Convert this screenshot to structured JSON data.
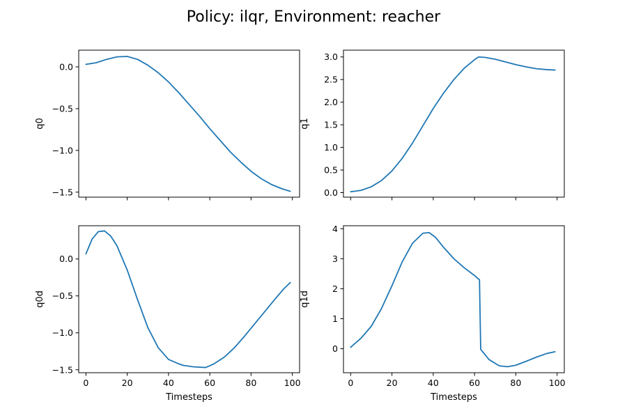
{
  "figure": {
    "title": "Policy: ilqr, Environment: reacher",
    "line_color": "#1f77b4"
  },
  "chart_data": [
    {
      "type": "line",
      "ylabel": "q0",
      "xlabel": "",
      "xlim": [
        -3.5,
        103.5
      ],
      "ylim": [
        -1.56,
        0.2
      ],
      "xticks": [
        0,
        20,
        40,
        60,
        80,
        100
      ],
      "xtick_labels_shown": false,
      "yticks": [
        0.0,
        -0.5,
        -1.0,
        -1.5
      ],
      "ytick_labels": [
        "0.0",
        "−0.5",
        "−1.0",
        "−1.5"
      ],
      "x": [
        0,
        5,
        10,
        15,
        20,
        25,
        30,
        35,
        40,
        45,
        50,
        55,
        60,
        65,
        70,
        75,
        80,
        85,
        90,
        95,
        99
      ],
      "values": [
        0.03,
        0.05,
        0.09,
        0.12,
        0.125,
        0.09,
        0.02,
        -0.07,
        -0.18,
        -0.31,
        -0.45,
        -0.59,
        -0.74,
        -0.88,
        -1.02,
        -1.14,
        -1.25,
        -1.34,
        -1.41,
        -1.46,
        -1.49
      ]
    },
    {
      "type": "line",
      "ylabel": "q1",
      "xlabel": "",
      "xlim": [
        -3.5,
        103.5
      ],
      "ylim": [
        -0.1,
        3.15
      ],
      "xticks": [
        0,
        20,
        40,
        60,
        80,
        100
      ],
      "xtick_labels_shown": false,
      "yticks": [
        0.0,
        0.5,
        1.0,
        1.5,
        2.0,
        2.5,
        3.0
      ],
      "ytick_labels": [
        "0.0",
        "0.5",
        "1.0",
        "1.5",
        "2.0",
        "2.5",
        "3.0"
      ],
      "x": [
        0,
        5,
        10,
        15,
        20,
        25,
        30,
        35,
        40,
        45,
        50,
        55,
        60,
        62,
        65,
        70,
        75,
        80,
        85,
        90,
        95,
        99
      ],
      "values": [
        0.02,
        0.05,
        0.13,
        0.27,
        0.48,
        0.76,
        1.1,
        1.48,
        1.86,
        2.2,
        2.5,
        2.75,
        2.94,
        3.0,
        2.99,
        2.95,
        2.89,
        2.83,
        2.78,
        2.74,
        2.72,
        2.71
      ]
    },
    {
      "type": "line",
      "ylabel": "q0d",
      "xlabel": "Timesteps",
      "xlim": [
        -3.5,
        103.5
      ],
      "ylim": [
        -1.54,
        0.45
      ],
      "xticks": [
        0,
        20,
        40,
        60,
        80,
        100
      ],
      "xtick_labels": [
        "0",
        "20",
        "40",
        "60",
        "80",
        "100"
      ],
      "xtick_labels_shown": true,
      "yticks": [
        0.0,
        -0.5,
        -1.0,
        -1.5
      ],
      "ytick_labels": [
        "0.0",
        "−0.5",
        "−1.0",
        "−1.5"
      ],
      "x": [
        0,
        3,
        6,
        9,
        12,
        15,
        20,
        25,
        30,
        35,
        40,
        45,
        47,
        52,
        58,
        62,
        67,
        72,
        77,
        82,
        87,
        92,
        96,
        99
      ],
      "values": [
        0.07,
        0.27,
        0.37,
        0.38,
        0.31,
        0.18,
        -0.15,
        -0.55,
        -0.93,
        -1.2,
        -1.36,
        -1.42,
        -1.44,
        -1.46,
        -1.47,
        -1.42,
        -1.33,
        -1.2,
        -1.04,
        -0.87,
        -0.7,
        -0.53,
        -0.4,
        -0.32
      ]
    },
    {
      "type": "line",
      "ylabel": "q1d",
      "xlabel": "Timesteps",
      "xlim": [
        -3.5,
        103.5
      ],
      "ylim": [
        -0.8,
        4.1
      ],
      "xticks": [
        0,
        20,
        40,
        60,
        80,
        100
      ],
      "xtick_labels": [
        "0",
        "20",
        "40",
        "60",
        "80",
        "100"
      ],
      "xtick_labels_shown": true,
      "yticks": [
        0,
        1,
        2,
        3,
        4
      ],
      "ytick_labels": [
        "0",
        "1",
        "2",
        "3",
        "4"
      ],
      "x": [
        0,
        5,
        10,
        15,
        20,
        25,
        30,
        35,
        38,
        41,
        45,
        50,
        55,
        60,
        62,
        62.4,
        63,
        67,
        72,
        76,
        80,
        85,
        90,
        95,
        99
      ],
      "values": [
        0.05,
        0.35,
        0.75,
        1.35,
        2.1,
        2.9,
        3.52,
        3.85,
        3.87,
        3.72,
        3.38,
        3.0,
        2.7,
        2.44,
        2.32,
        2.3,
        -0.02,
        -0.36,
        -0.57,
        -0.6,
        -0.55,
        -0.42,
        -0.28,
        -0.16,
        -0.1
      ]
    }
  ]
}
